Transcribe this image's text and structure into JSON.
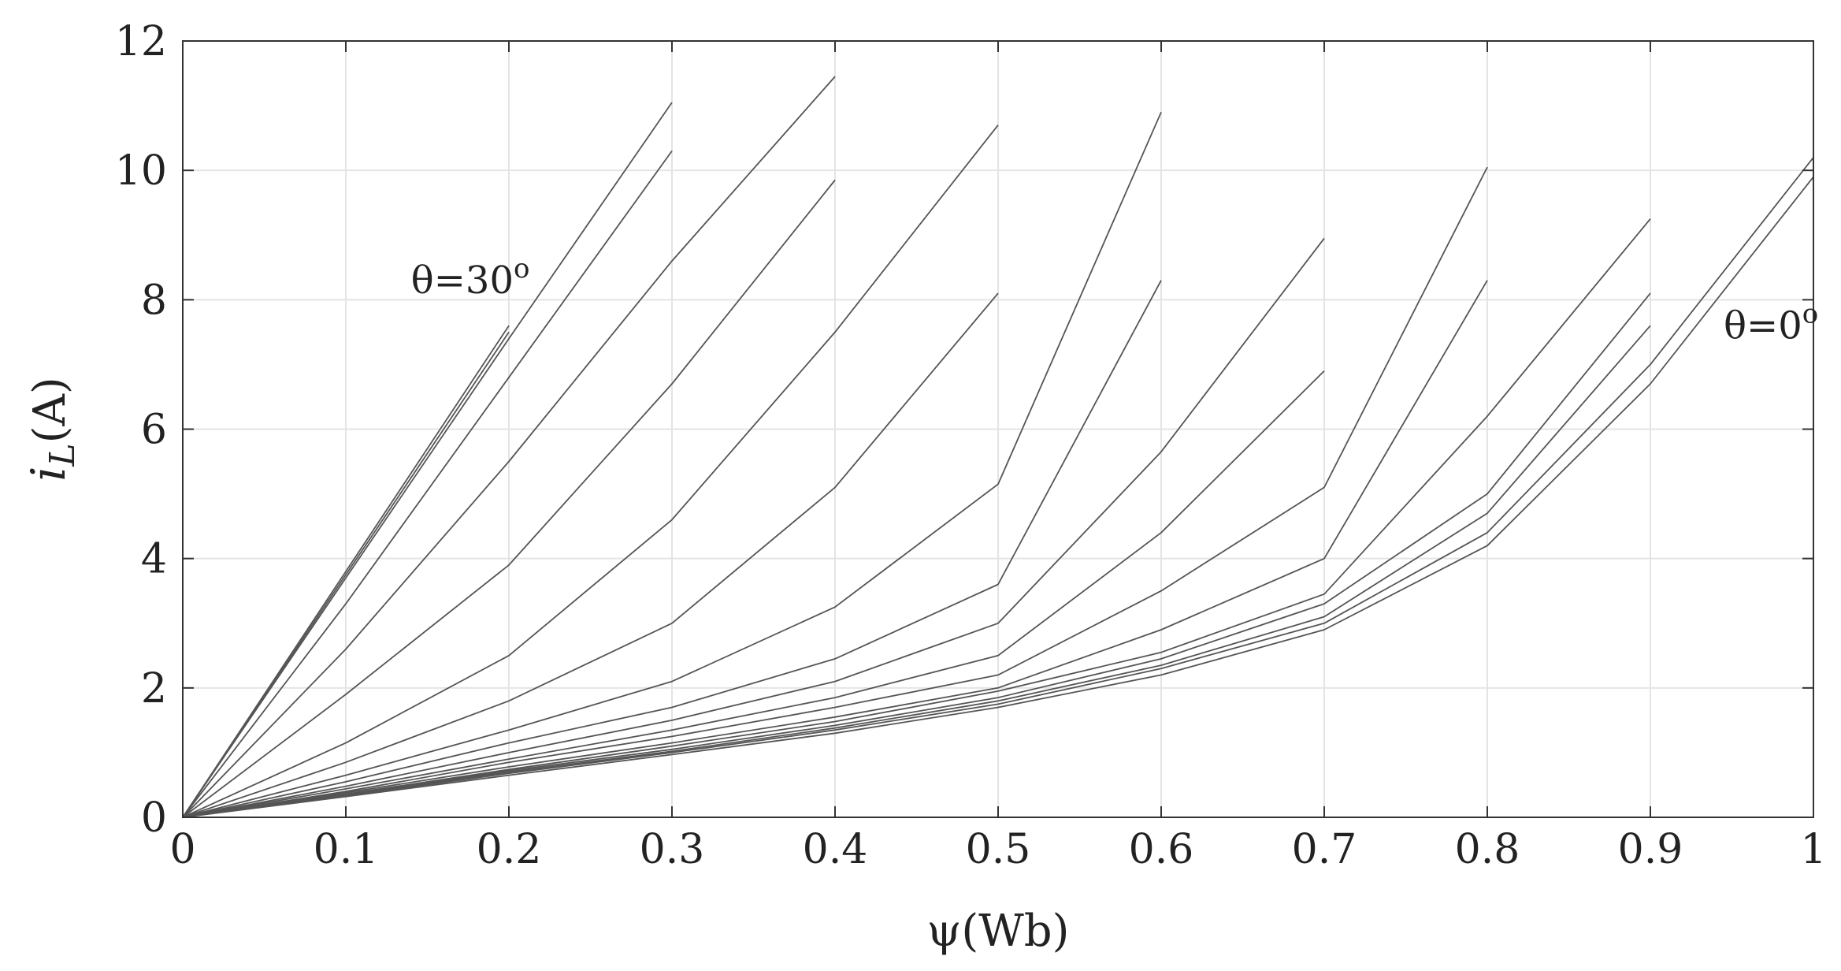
{
  "chart_data": {
    "type": "line",
    "xlabel": "ψ(Wb)",
    "ylabel": {
      "main": "i",
      "sub": "L",
      "rest": "(A)"
    },
    "xlim": [
      0,
      1
    ],
    "ylim": [
      0,
      12
    ],
    "x_ticks": [
      0,
      0.1,
      0.2,
      0.3,
      0.4,
      0.5,
      0.6,
      0.7,
      0.8,
      0.9,
      1
    ],
    "x_tick_labels": [
      "0",
      "0.1",
      "0.2",
      "0.3",
      "0.4",
      "0.5",
      "0.6",
      "0.7",
      "0.8",
      "0.9",
      "1"
    ],
    "y_ticks": [
      0,
      2,
      4,
      6,
      8,
      10,
      12
    ],
    "y_tick_labels": [
      "0",
      "2",
      "4",
      "6",
      "8",
      "10",
      "12"
    ],
    "grid": true,
    "line_color": "#555555",
    "grid_color": "#e4e4e4",
    "annotations": [
      {
        "text": "θ=30",
        "superscript": "o",
        "at": [
          0.14,
          8.1
        ]
      },
      {
        "text": "θ=0",
        "superscript": "o",
        "at": [
          0.945,
          7.4
        ]
      }
    ],
    "series": [
      {
        "x": [
          0,
          0.2
        ],
        "y": [
          0,
          7.6
        ]
      },
      {
        "x": [
          0,
          0.2
        ],
        "y": [
          0,
          7.5
        ]
      },
      {
        "x": [
          0,
          0.1,
          0.2,
          0.3
        ],
        "y": [
          0,
          3.7,
          7.4,
          11.05
        ]
      },
      {
        "x": [
          0,
          0.1,
          0.2,
          0.3
        ],
        "y": [
          0,
          3.3,
          6.8,
          10.3
        ]
      },
      {
        "x": [
          0,
          0.1,
          0.2,
          0.3,
          0.4
        ],
        "y": [
          0,
          2.6,
          5.5,
          8.6,
          11.45
        ]
      },
      {
        "x": [
          0,
          0.1,
          0.2,
          0.3,
          0.4
        ],
        "y": [
          0,
          1.9,
          3.9,
          6.7,
          9.85
        ]
      },
      {
        "x": [
          0,
          0.1,
          0.2,
          0.3,
          0.4,
          0.5
        ],
        "y": [
          0,
          1.15,
          2.5,
          4.6,
          7.5,
          10.7
        ]
      },
      {
        "x": [
          0,
          0.1,
          0.2,
          0.3,
          0.4,
          0.5
        ],
        "y": [
          0,
          0.85,
          1.8,
          3.0,
          5.1,
          8.1
        ]
      },
      {
        "x": [
          0,
          0.1,
          0.2,
          0.3,
          0.4,
          0.5,
          0.6
        ],
        "y": [
          0,
          0.65,
          1.35,
          2.1,
          3.25,
          5.15,
          10.9
        ]
      },
      {
        "x": [
          0,
          0.1,
          0.2,
          0.3,
          0.4,
          0.5,
          0.6
        ],
        "y": [
          0,
          0.55,
          1.15,
          1.7,
          2.45,
          3.6,
          8.3
        ]
      },
      {
        "x": [
          0,
          0.1,
          0.2,
          0.3,
          0.4,
          0.5,
          0.6,
          0.7
        ],
        "y": [
          0,
          0.48,
          1.0,
          1.5,
          2.1,
          3.0,
          5.65,
          8.95
        ]
      },
      {
        "x": [
          0,
          0.1,
          0.2,
          0.3,
          0.4,
          0.5,
          0.6,
          0.7
        ],
        "y": [
          0,
          0.44,
          0.9,
          1.35,
          1.85,
          2.5,
          4.4,
          6.9
        ]
      },
      {
        "x": [
          0,
          0.1,
          0.2,
          0.3,
          0.4,
          0.5,
          0.6,
          0.7,
          0.8
        ],
        "y": [
          0,
          0.4,
          0.85,
          1.25,
          1.7,
          2.2,
          3.5,
          5.1,
          10.05
        ]
      },
      {
        "x": [
          0,
          0.1,
          0.2,
          0.3,
          0.4,
          0.5,
          0.6,
          0.7,
          0.8
        ],
        "y": [
          0,
          0.38,
          0.78,
          1.15,
          1.55,
          2.0,
          2.9,
          4.0,
          8.3
        ]
      },
      {
        "x": [
          0,
          0.1,
          0.2,
          0.3,
          0.4,
          0.5,
          0.6,
          0.7,
          0.8,
          0.9
        ],
        "y": [
          0,
          0.36,
          0.74,
          1.1,
          1.48,
          1.95,
          2.55,
          3.45,
          6.2,
          9.25
        ]
      },
      {
        "x": [
          0,
          0.1,
          0.2,
          0.3,
          0.4,
          0.5,
          0.6,
          0.7,
          0.8,
          0.9
        ],
        "y": [
          0,
          0.35,
          0.72,
          1.05,
          1.42,
          1.85,
          2.45,
          3.3,
          5.0,
          8.1
        ]
      },
      {
        "x": [
          0,
          0.1,
          0.2,
          0.3,
          0.4,
          0.5,
          0.6,
          0.7,
          0.8,
          0.9
        ],
        "y": [
          0,
          0.34,
          0.7,
          1.02,
          1.38,
          1.8,
          2.35,
          3.1,
          4.7,
          7.6
        ]
      },
      {
        "x": [
          0,
          0.1,
          0.2,
          0.3,
          0.4,
          0.5,
          0.6,
          0.7,
          0.8,
          0.9,
          1.0
        ],
        "y": [
          0,
          0.33,
          0.68,
          1.0,
          1.35,
          1.75,
          2.3,
          3.0,
          4.4,
          7.0,
          10.2
        ]
      },
      {
        "x": [
          0,
          0.1,
          0.2,
          0.3,
          0.4,
          0.5,
          0.6,
          0.7,
          0.8,
          0.9,
          1.0
        ],
        "y": [
          0,
          0.32,
          0.65,
          0.97,
          1.3,
          1.7,
          2.2,
          2.9,
          4.2,
          6.7,
          9.9
        ]
      }
    ]
  }
}
